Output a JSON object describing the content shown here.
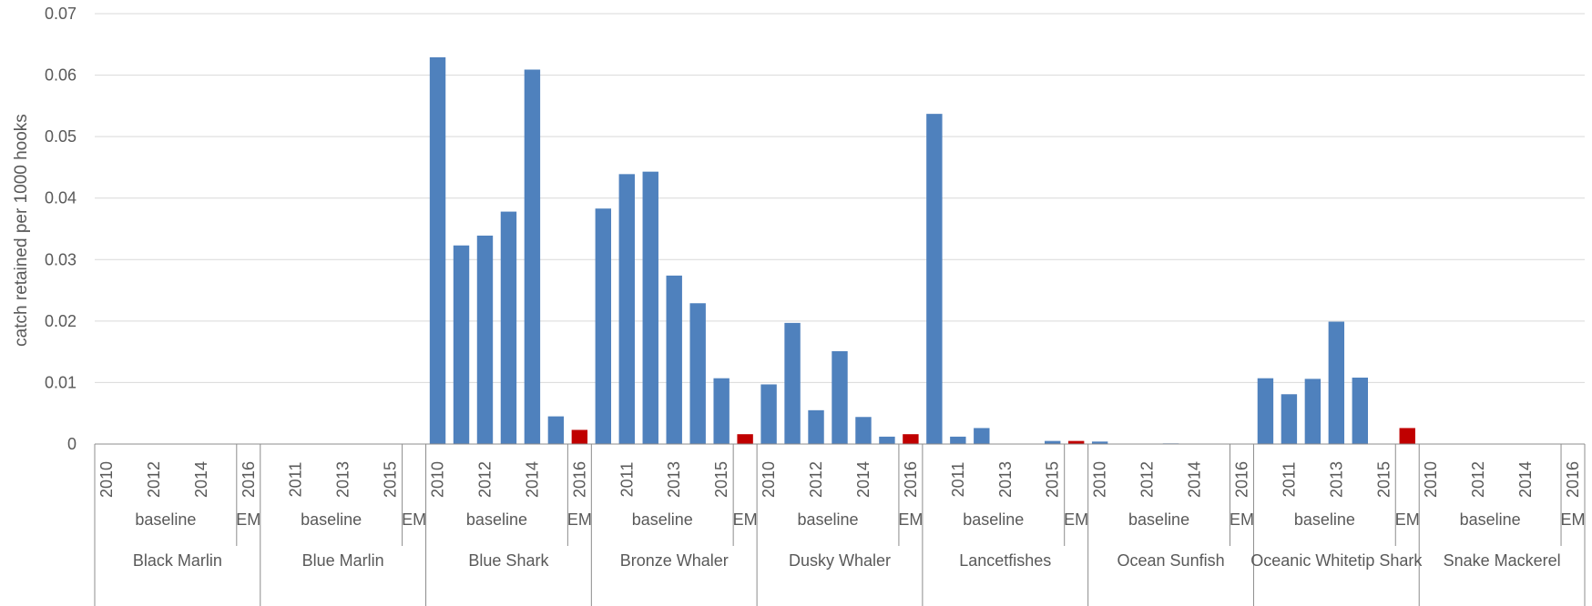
{
  "chart_data": {
    "type": "bar",
    "title": "",
    "xlabel": "",
    "ylabel": "catch retained per 1000 hooks",
    "ylim": [
      0,
      0.07
    ],
    "yticks": [
      "0",
      "0.01",
      "0.02",
      "0.03",
      "0.04",
      "0.05",
      "0.06",
      "0.07"
    ],
    "grid": true,
    "colors": {
      "baseline": "#4f81bd",
      "EM": "#c00000"
    },
    "groups": [
      {
        "species": "Black Marlin",
        "periods": [
          {
            "label": "baseline",
            "type": "baseline",
            "years": [
              "2010",
              "2011",
              "2012",
              "2013",
              "2014",
              "2015"
            ],
            "values": [
              0,
              0,
              0,
              0,
              0,
              0
            ]
          },
          {
            "label": "EM",
            "type": "EM",
            "years": [
              "2016"
            ],
            "values": [
              0
            ]
          }
        ],
        "tick_labels": [
          "2010",
          "2012",
          "2014",
          "2016"
        ]
      },
      {
        "species": "Blue Marlin",
        "periods": [
          {
            "label": "baseline",
            "type": "baseline",
            "years": [
              "2010",
              "2011",
              "2012",
              "2013",
              "2014",
              "2015"
            ],
            "values": [
              0,
              0,
              0,
              0,
              0,
              0
            ]
          },
          {
            "label": "EM",
            "type": "EM",
            "years": [
              "2016"
            ],
            "values": [
              0
            ]
          }
        ],
        "tick_labels": [
          "2011",
          "2013",
          "2015"
        ]
      },
      {
        "species": "Blue Shark",
        "periods": [
          {
            "label": "baseline",
            "type": "baseline",
            "years": [
              "2010",
              "2011",
              "2012",
              "2013",
              "2014",
              "2015"
            ],
            "values": [
              0.0629,
              0.0323,
              0.0339,
              0.0378,
              0.0609,
              0.0045
            ]
          },
          {
            "label": "EM",
            "type": "EM",
            "years": [
              "2016"
            ],
            "values": [
              0.0023
            ]
          }
        ],
        "tick_labels": [
          "2010",
          "2012",
          "2014",
          "2016"
        ]
      },
      {
        "species": "Bronze Whaler",
        "periods": [
          {
            "label": "baseline",
            "type": "baseline",
            "years": [
              "2010",
              "2011",
              "2012",
              "2013",
              "2014",
              "2015"
            ],
            "values": [
              0.0383,
              0.0439,
              0.0443,
              0.0274,
              0.0229,
              0.0107
            ]
          },
          {
            "label": "EM",
            "type": "EM",
            "years": [
              "2016"
            ],
            "values": [
              0.0016
            ]
          }
        ],
        "tick_labels": [
          "2011",
          "2013",
          "2015"
        ]
      },
      {
        "species": "Dusky Whaler",
        "periods": [
          {
            "label": "baseline",
            "type": "baseline",
            "years": [
              "2010",
              "2011",
              "2012",
              "2013",
              "2014",
              "2015"
            ],
            "values": [
              0.0097,
              0.0197,
              0.0055,
              0.0151,
              0.0044,
              0.0012
            ]
          },
          {
            "label": "EM",
            "type": "EM",
            "years": [
              "2016"
            ],
            "values": [
              0.0016
            ]
          }
        ],
        "tick_labels": [
          "2010",
          "2012",
          "2014",
          "2016"
        ]
      },
      {
        "species": "Lancetfishes",
        "periods": [
          {
            "label": "baseline",
            "type": "baseline",
            "years": [
              "2010",
              "2011",
              "2012",
              "2013",
              "2014",
              "2015"
            ],
            "values": [
              0.0537,
              0.0012,
              0.0026,
              0,
              0,
              0.0005
            ]
          },
          {
            "label": "EM",
            "type": "EM",
            "years": [
              "2016"
            ],
            "values": [
              0.0005
            ]
          }
        ],
        "tick_labels": [
          "2011",
          "2013",
          "2015"
        ]
      },
      {
        "species": "Ocean Sunfish",
        "periods": [
          {
            "label": "baseline",
            "type": "baseline",
            "years": [
              "2010",
              "2011",
              "2012",
              "2013",
              "2014",
              "2015"
            ],
            "values": [
              0.0004,
              0,
              0,
              0.0001,
              0,
              0
            ]
          },
          {
            "label": "EM",
            "type": "EM",
            "years": [
              "2016"
            ],
            "values": [
              0
            ]
          }
        ],
        "tick_labels": [
          "2010",
          "2012",
          "2014",
          "2016"
        ]
      },
      {
        "species": "Oceanic Whitetip Shark",
        "periods": [
          {
            "label": "baseline",
            "type": "baseline",
            "years": [
              "2010",
              "2011",
              "2012",
              "2013",
              "2014",
              "2015"
            ],
            "values": [
              0.0107,
              0.0081,
              0.0106,
              0.0199,
              0.0108,
              0
            ]
          },
          {
            "label": "EM",
            "type": "EM",
            "years": [
              "2016"
            ],
            "values": [
              0.0026
            ]
          }
        ],
        "tick_labels": [
          "2011",
          "2013",
          "2015"
        ]
      },
      {
        "species": "Snake Mackerel",
        "periods": [
          {
            "label": "baseline",
            "type": "baseline",
            "years": [
              "2010",
              "2011",
              "2012",
              "2013",
              "2014",
              "2015"
            ],
            "values": [
              0,
              0,
              0,
              0,
              0,
              0
            ]
          },
          {
            "label": "EM",
            "type": "EM",
            "years": [
              "2016"
            ],
            "values": [
              0
            ]
          }
        ],
        "tick_labels": [
          "2010",
          "2012",
          "2014",
          "2016"
        ]
      }
    ]
  }
}
